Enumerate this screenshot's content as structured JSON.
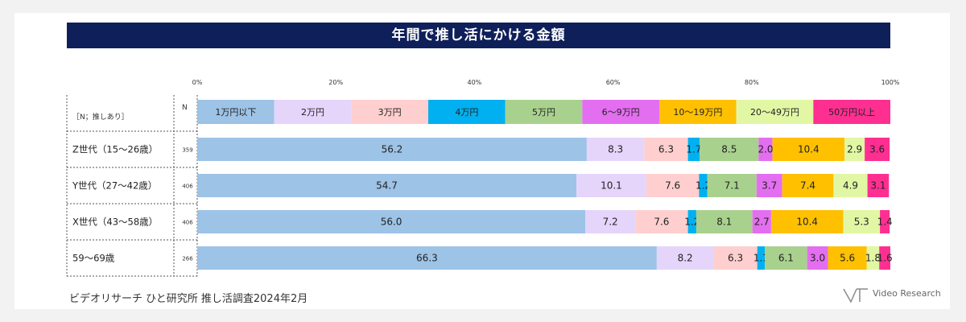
{
  "title": "年間で推し活にかける金額",
  "source": "ビデオリサーチ ひと研究所 推し活調査2024年2月",
  "brand": "Video Research",
  "chart_data": {
    "type": "bar",
    "orientation": "horizontal",
    "stacked": true,
    "axis_ticks": [
      "0%",
      "20%",
      "40%",
      "60%",
      "80%",
      "100%"
    ],
    "xlim": [
      0,
      100
    ],
    "header_label": "［N；推しあり］",
    "n_header": "N",
    "categories": [
      "Z世代（15～26歳）",
      "Y世代（27～42歳）",
      "X世代（43～58歳）",
      "59～69歳"
    ],
    "n_values": [
      "359",
      "406",
      "406",
      "266"
    ],
    "legend_placement": "top",
    "series": [
      {
        "name": "1万円以下",
        "color": "#9dc3e6",
        "values": [
          56.2,
          54.7,
          56.0,
          66.3
        ],
        "labels": [
          "56.2",
          "54.7",
          "56.0",
          "66.3"
        ]
      },
      {
        "name": "2万円",
        "color": "#e5d5fb",
        "values": [
          8.3,
          10.1,
          7.2,
          8.2
        ],
        "labels": [
          "8.3",
          "10.1",
          "7.2",
          "8.2"
        ]
      },
      {
        "name": "3万円",
        "color": "#ffcfcf",
        "values": [
          6.3,
          7.6,
          7.6,
          6.3
        ],
        "labels": [
          "6.3",
          "7.6",
          "7.6",
          "6.3"
        ]
      },
      {
        "name": "4万円",
        "color": "#00b0f0",
        "values": [
          1.7,
          1.2,
          1.2,
          1.1
        ],
        "labels": [
          "1.7",
          "1.2",
          "1.2",
          "1.1"
        ]
      },
      {
        "name": "5万円",
        "color": "#a9d18e",
        "values": [
          8.5,
          7.1,
          8.1,
          6.1
        ],
        "labels": [
          "8.5",
          "7.1",
          "8.1",
          "6.1"
        ]
      },
      {
        "name": "6～9万円",
        "color": "#e46ef0",
        "values": [
          2.0,
          3.7,
          2.7,
          3.0
        ],
        "labels": [
          "2.0",
          "3.7",
          "2.7",
          "3.0"
        ]
      },
      {
        "name": "10～19万円",
        "color": "#ffc000",
        "values": [
          10.4,
          7.4,
          10.4,
          5.6
        ],
        "labels": [
          "10.4",
          "7.4",
          "10.4",
          "5.6"
        ]
      },
      {
        "name": "20～49万円",
        "color": "#e2f7a4",
        "values": [
          2.9,
          4.9,
          5.3,
          1.8
        ],
        "labels": [
          "2.9",
          "4.9",
          "5.3",
          "1.8"
        ]
      },
      {
        "name": "50万円以上",
        "color": "#ff2f92",
        "values": [
          3.6,
          3.1,
          1.4,
          1.6
        ],
        "labels": [
          "3.6",
          "3.1",
          "1.4",
          "1.6"
        ]
      }
    ]
  }
}
